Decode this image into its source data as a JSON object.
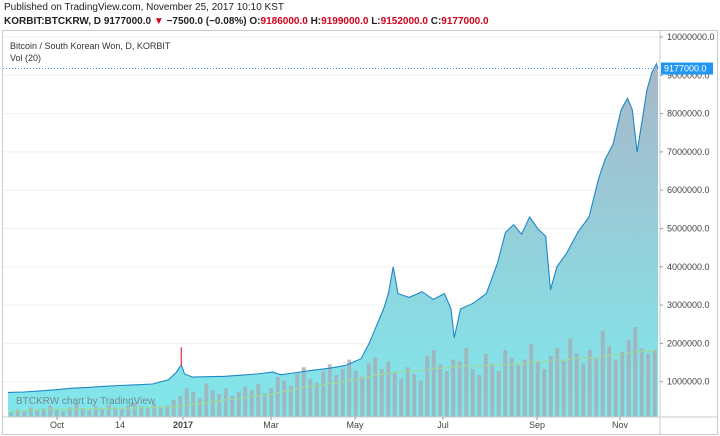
{
  "header": {
    "published": "Published on TradingView.com, November 25, 2017 10:10 KST",
    "symbol": "KORBIT:BTCKRW, D",
    "price": "9177000.0",
    "change": "−7500.0 (−0.08%)",
    "open_label": "O:",
    "open": "9186000.0",
    "high_label": "H:",
    "high": "9199000.0",
    "low_label": "L:",
    "low": "9152000.0",
    "close_label": "C:",
    "close": "9177000.0"
  },
  "legend": {
    "title": "Bitcoin / South Korean Won, D, KORBIT",
    "volume": "Vol (20)"
  },
  "watermark": "BTCKRW chart by TradingView",
  "colors": {
    "line": "#1e88c8",
    "area_top": "#a9b7c8",
    "area_bottom": "#7fe8ec",
    "volume": "#a6aab0",
    "volume_ma": "#9fd8a0",
    "last_price": "#2196f3",
    "spike": "#e0455a"
  },
  "chart_data": {
    "type": "area",
    "title": "Bitcoin / South Korean Won, D, KORBIT",
    "last_price_label": "9177000.0",
    "x_ticks": [
      "Oct",
      "14",
      "2017",
      "Mar",
      "May",
      "Jul",
      "Sep",
      "Nov"
    ],
    "y_ticks": [
      "1000000.0",
      "2000000.0",
      "3000000.0",
      "4000000.0",
      "5000000.0",
      "6000000.0",
      "7000000.0",
      "8000000.0",
      "9000000.0",
      "10000000.0"
    ],
    "ylim": [
      0,
      10000000
    ],
    "series": [
      {
        "values": [
          [
            0,
            720000
          ],
          [
            10,
            730000
          ],
          [
            20,
            760000
          ],
          [
            30,
            790000
          ],
          [
            40,
            830000
          ],
          [
            50,
            850000
          ],
          [
            60,
            880000
          ],
          [
            70,
            900000
          ],
          [
            80,
            920000
          ],
          [
            90,
            940000
          ],
          [
            100,
            1050000
          ],
          [
            105,
            1250000
          ],
          [
            108,
            1450000
          ],
          [
            110,
            1200000
          ],
          [
            115,
            1120000
          ],
          [
            125,
            1130000
          ],
          [
            135,
            1140000
          ],
          [
            145,
            1170000
          ],
          [
            155,
            1200000
          ],
          [
            165,
            1250000
          ],
          [
            170,
            1180000
          ],
          [
            180,
            1240000
          ],
          [
            190,
            1300000
          ],
          [
            200,
            1350000
          ],
          [
            210,
            1420000
          ],
          [
            220,
            1600000
          ],
          [
            225,
            2000000
          ],
          [
            230,
            2500000
          ],
          [
            234,
            2900000
          ],
          [
            237,
            3300000
          ],
          [
            240,
            4000000
          ],
          [
            243,
            3300000
          ],
          [
            250,
            3200000
          ],
          [
            258,
            3350000
          ],
          [
            265,
            3150000
          ],
          [
            272,
            3300000
          ],
          [
            276,
            2900000
          ],
          [
            278,
            2150000
          ],
          [
            282,
            2900000
          ],
          [
            290,
            3050000
          ],
          [
            298,
            3300000
          ],
          [
            305,
            4100000
          ],
          [
            310,
            4900000
          ],
          [
            315,
            5100000
          ],
          [
            320,
            4850000
          ],
          [
            325,
            5300000
          ],
          [
            330,
            5000000
          ],
          [
            335,
            4800000
          ],
          [
            338,
            3400000
          ],
          [
            342,
            4000000
          ],
          [
            348,
            4350000
          ],
          [
            355,
            4900000
          ],
          [
            362,
            5300000
          ],
          [
            368,
            6300000
          ],
          [
            372,
            6800000
          ],
          [
            377,
            7200000
          ],
          [
            382,
            8100000
          ],
          [
            386,
            8400000
          ],
          [
            389,
            8100000
          ],
          [
            392,
            7000000
          ],
          [
            395,
            7800000
          ],
          [
            398,
            8600000
          ],
          [
            401,
            9050000
          ],
          [
            404,
            9300000
          ],
          [
            405,
            9177000
          ]
        ]
      }
    ],
    "volume": [
      5,
      8,
      6,
      10,
      7,
      9,
      12,
      8,
      6,
      10,
      14,
      9,
      7,
      11,
      8,
      13,
      10,
      9,
      12,
      15,
      11,
      9,
      14,
      10,
      12,
      18,
      22,
      30,
      26,
      20,
      35,
      28,
      24,
      30,
      22,
      26,
      32,
      28,
      34,
      25,
      30,
      42,
      38,
      33,
      45,
      52,
      40,
      36,
      48,
      55,
      44,
      50,
      60,
      48,
      42,
      56,
      62,
      50,
      58,
      46,
      40,
      52,
      45,
      38,
      64,
      70,
      55,
      48,
      60,
      58,
      72,
      50,
      44,
      66,
      56,
      48,
      70,
      62,
      54,
      60,
      76,
      58,
      50,
      64,
      72,
      60,
      82,
      66,
      56,
      70,
      62,
      90,
      74,
      60,
      68,
      80,
      94,
      72,
      66,
      70
    ]
  }
}
